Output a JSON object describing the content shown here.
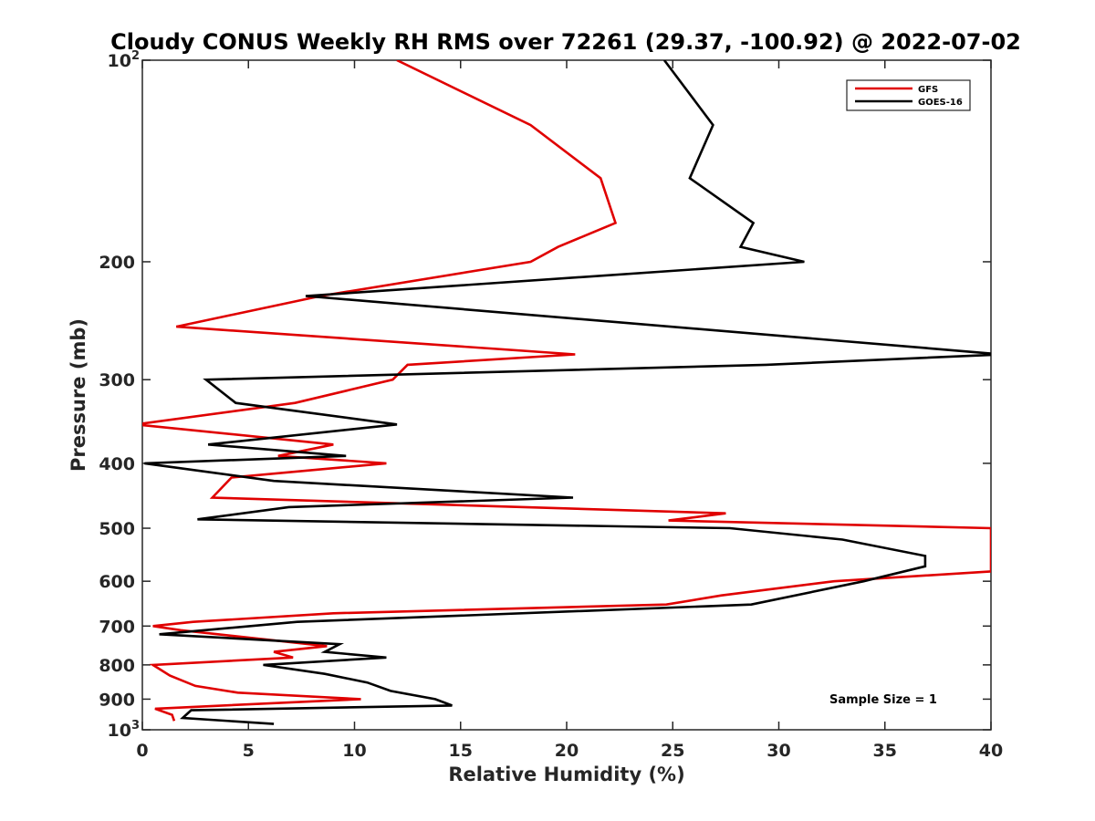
{
  "chart_data": {
    "type": "line",
    "title": "Cloudy CONUS Weekly RH RMS over 72261 (29.37, -100.92) @ 2022-07-02",
    "xlabel": "Relative Humidity (%)",
    "ylabel": "Pressure (mb)",
    "xlim": [
      0,
      40
    ],
    "ylim": [
      100,
      1000
    ],
    "y_scale": "log",
    "y_reversed": true,
    "x_ticks": [
      "0",
      "5",
      "10",
      "15",
      "20",
      "25",
      "30",
      "35",
      "40"
    ],
    "y_ticks": [
      {
        "value": 100,
        "label": "10",
        "sup": "2"
      },
      {
        "value": 200,
        "label": "200"
      },
      {
        "value": 300,
        "label": "300"
      },
      {
        "value": 400,
        "label": "400"
      },
      {
        "value": 500,
        "label": "500"
      },
      {
        "value": 600,
        "label": "600"
      },
      {
        "value": 700,
        "label": "700"
      },
      {
        "value": 800,
        "label": "800"
      },
      {
        "value": 900,
        "label": "900"
      },
      {
        "value": 1000,
        "label": "10",
        "sup": "3"
      }
    ],
    "legend_position": "top-right",
    "annotation": "Sample Size = 1",
    "series": [
      {
        "name": "GFS",
        "color": "#e00000",
        "points": [
          [
            12.0,
            100
          ],
          [
            18.3,
            125
          ],
          [
            21.6,
            150
          ],
          [
            22.3,
            175
          ],
          [
            19.6,
            190
          ],
          [
            18.3,
            200
          ],
          [
            8.4,
            225
          ],
          [
            1.6,
            250
          ],
          [
            20.4,
            275
          ],
          [
            12.5,
            285
          ],
          [
            11.8,
            300
          ],
          [
            7.2,
            325
          ],
          [
            -0.3,
            350
          ],
          [
            9.0,
            375
          ],
          [
            6.4,
            390
          ],
          [
            11.5,
            400
          ],
          [
            4.2,
            420
          ],
          [
            3.3,
            450
          ],
          [
            27.5,
            475
          ],
          [
            24.8,
            487
          ],
          [
            40.0,
            500
          ],
          [
            40.0,
            580
          ],
          [
            32.6,
            600
          ],
          [
            27.3,
            630
          ],
          [
            24.7,
            650
          ],
          [
            9.0,
            670
          ],
          [
            2.4,
            690
          ],
          [
            0.5,
            700
          ],
          [
            1.8,
            710
          ],
          [
            8.7,
            750
          ],
          [
            6.2,
            765
          ],
          [
            7.1,
            780
          ],
          [
            0.5,
            800
          ],
          [
            1.3,
            830
          ],
          [
            2.5,
            860
          ],
          [
            4.5,
            880
          ],
          [
            10.3,
            900
          ],
          [
            0.6,
            930
          ],
          [
            1.4,
            950
          ],
          [
            1.5,
            970
          ]
        ]
      },
      {
        "name": "GOES-16",
        "color": "#000000",
        "points": [
          [
            24.6,
            100
          ],
          [
            26.9,
            125
          ],
          [
            25.8,
            150
          ],
          [
            28.8,
            175
          ],
          [
            28.2,
            190
          ],
          [
            31.2,
            200
          ],
          [
            7.7,
            225
          ],
          [
            40.5,
            275
          ],
          [
            29.4,
            285
          ],
          [
            3.0,
            300
          ],
          [
            4.4,
            325
          ],
          [
            12.0,
            350
          ],
          [
            3.1,
            375
          ],
          [
            9.6,
            390
          ],
          [
            0.1,
            400
          ],
          [
            6.2,
            425
          ],
          [
            20.3,
            450
          ],
          [
            6.9,
            465
          ],
          [
            2.6,
            485
          ],
          [
            27.7,
            500
          ],
          [
            33.0,
            520
          ],
          [
            36.9,
            550
          ],
          [
            36.9,
            570
          ],
          [
            34.0,
            600
          ],
          [
            28.7,
            650
          ],
          [
            7.3,
            690
          ],
          [
            0.8,
            720
          ],
          [
            9.3,
            745
          ],
          [
            8.6,
            765
          ],
          [
            11.5,
            780
          ],
          [
            5.7,
            800
          ],
          [
            8.6,
            825
          ],
          [
            10.6,
            850
          ],
          [
            11.7,
            875
          ],
          [
            13.8,
            900
          ],
          [
            14.6,
            920
          ],
          [
            2.3,
            935
          ],
          [
            1.9,
            960
          ],
          [
            6.2,
            980
          ]
        ]
      }
    ]
  }
}
